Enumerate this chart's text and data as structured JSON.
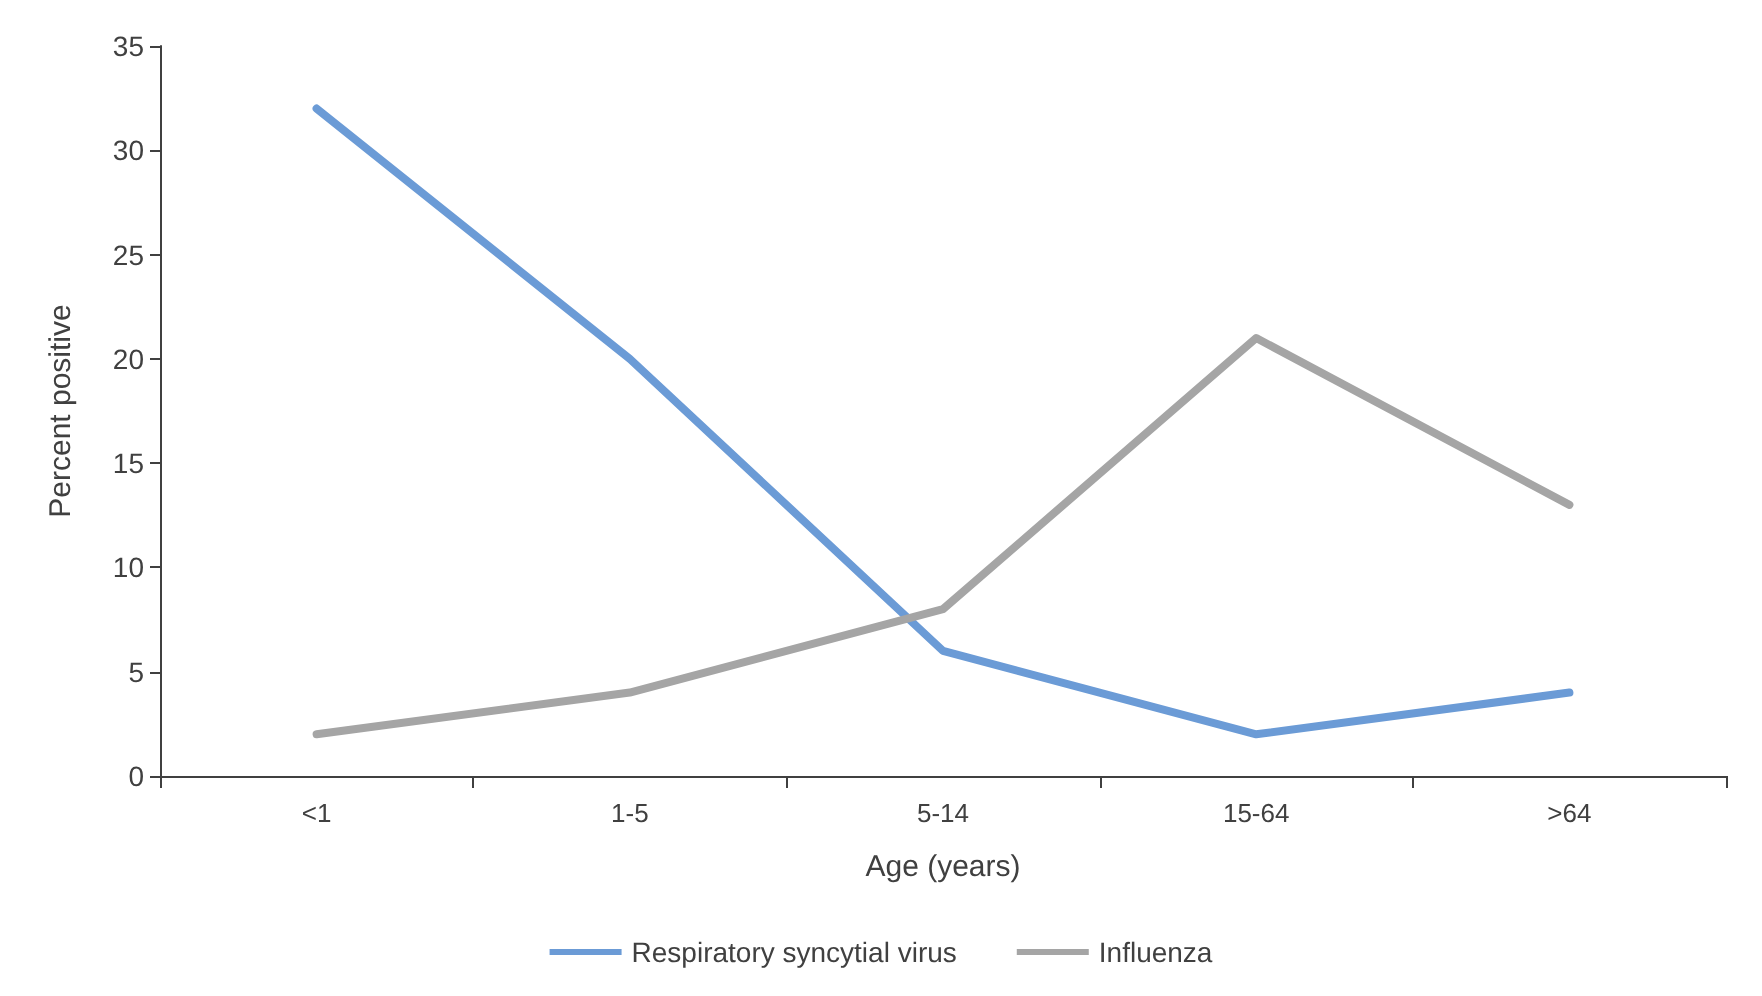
{
  "chart_data": {
    "type": "line",
    "xlabel": "Age (years)",
    "ylabel": "Percent positive",
    "categories": [
      "<1",
      "1-5",
      "5-14",
      "15-64",
      ">64"
    ],
    "series": [
      {
        "name": "Respiratory syncytial virus",
        "color": "#6b9bd6",
        "values": [
          32,
          20,
          6,
          2,
          4
        ]
      },
      {
        "name": "Influenza",
        "color": "#a5a5a5",
        "values": [
          2,
          4,
          8,
          21,
          13
        ]
      }
    ],
    "ylim": [
      0,
      35
    ],
    "yticks": [
      0,
      5,
      10,
      15,
      20,
      25,
      30,
      35
    ],
    "grid": false,
    "legend": "bottom",
    "marker": "none",
    "line_style": "solid"
  }
}
